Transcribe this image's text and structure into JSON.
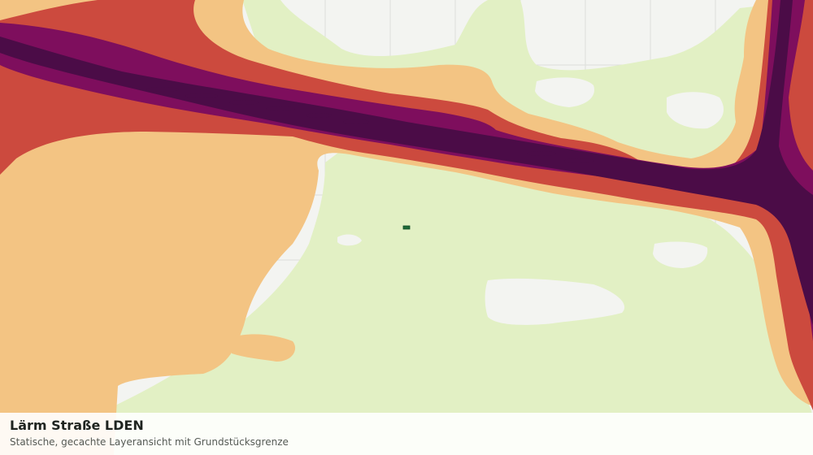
{
  "map": {
    "layer": "noise-road-lden",
    "colors": {
      "background": "#f3f4f1",
      "grid": "#dcdedb",
      "greenery": "#e2f0c4",
      "level_1": "#f3c483",
      "level_2": "#cc4a3e",
      "level_3": "#7e0e5d",
      "level_4": "#4b0c47",
      "parcel": "#1f6b3a"
    }
  },
  "caption": {
    "title": "Lärm Straße LDEN",
    "subtitle": "Statische, gecachte Layeransicht mit Grundstücksgrenze"
  }
}
